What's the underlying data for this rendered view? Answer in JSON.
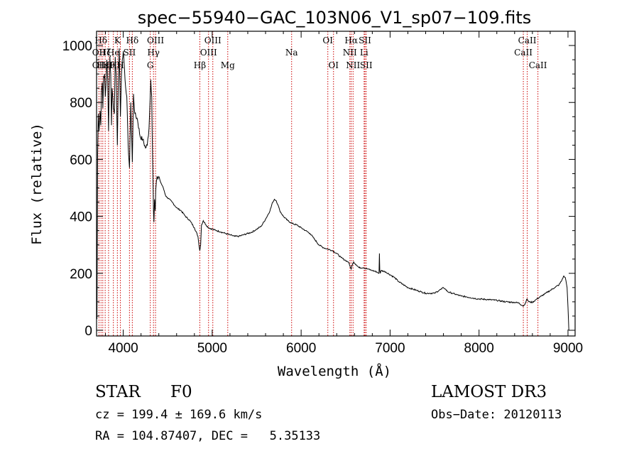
{
  "chart_data": {
    "type": "line",
    "title": "spec−55940−GAC_103N06_V1_sp07−109.fits",
    "xlabel": "Wavelength (Å)",
    "ylabel": "Flux (relative)",
    "xlim": [
      3700,
      9080
    ],
    "ylim": [
      -20,
      1050
    ],
    "xticks": [
      4000,
      5000,
      6000,
      7000,
      8000,
      9000
    ],
    "xtick_labels": [
      "4000",
      "5000",
      "6000",
      "7000",
      "8000",
      "9000"
    ],
    "yticks": [
      0,
      200,
      400,
      600,
      800,
      1000
    ],
    "ytick_labels": [
      "0",
      "200",
      "400",
      "600",
      "800",
      "1000"
    ],
    "grid": false,
    "series": [
      {
        "name": "flux",
        "x": [
          3700,
          3705,
          3712,
          3720,
          3728,
          3735,
          3740,
          3748,
          3755,
          3765,
          3770,
          3780,
          3790,
          3798,
          3805,
          3815,
          3825,
          3835,
          3842,
          3850,
          3860,
          3868,
          3875,
          3889,
          3900,
          3910,
          3920,
          3934,
          3945,
          3955,
          3968,
          3980,
          3990,
          4000,
          4010,
          4020,
          4040,
          4055,
          4070,
          4085,
          4102,
          4115,
          4130,
          4160,
          4190,
          4220,
          4250,
          4270,
          4290,
          4310,
          4320,
          4330,
          4340,
          4345,
          4352,
          4360,
          4365,
          4372,
          4380,
          4390,
          4400,
          4420,
          4450,
          4480,
          4500,
          4550,
          4600,
          4650,
          4700,
          4750,
          4800,
          4840,
          4855,
          4861,
          4870,
          4880,
          4900,
          4930,
          4960,
          5000,
          5050,
          5100,
          5150,
          5200,
          5250,
          5300,
          5350,
          5400,
          5450,
          5500,
          5550,
          5600,
          5650,
          5680,
          5700,
          5720,
          5740,
          5760,
          5800,
          5850,
          5900,
          5950,
          6000,
          6050,
          6100,
          6150,
          6200,
          6250,
          6300,
          6350,
          6400,
          6450,
          6500,
          6530,
          6550,
          6563,
          6575,
          6590,
          6620,
          6650,
          6700,
          6750,
          6800,
          6850,
          6875,
          6880,
          6884,
          6890,
          6900,
          6950,
          7000,
          7050,
          7100,
          7150,
          7200,
          7250,
          7300,
          7350,
          7400,
          7450,
          7500,
          7550,
          7580,
          7600,
          7620,
          7650,
          7700,
          7750,
          7800,
          7850,
          7900,
          7950,
          8000,
          8100,
          8200,
          8300,
          8400,
          8450,
          8480,
          8500,
          8520,
          8540,
          8560,
          8600,
          8650,
          8700,
          8750,
          8800,
          8850,
          8900,
          8930,
          8950,
          8970,
          8990,
          9000,
          9010
        ],
        "y": [
          280,
          40,
          620,
          760,
          700,
          740,
          770,
          720,
          840,
          870,
          780,
          890,
          900,
          820,
          860,
          950,
          880,
          700,
          860,
          960,
          900,
          720,
          850,
          780,
          760,
          960,
          900,
          650,
          880,
          990,
          750,
          900,
          950,
          980,
          940,
          880,
          820,
          650,
          570,
          800,
          590,
          830,
          760,
          740,
          680,
          670,
          640,
          650,
          710,
          880,
          820,
          600,
          420,
          380,
          460,
          420,
          490,
          520,
          540,
          530,
          540,
          520,
          500,
          470,
          465,
          450,
          430,
          420,
          400,
          385,
          360,
          330,
          290,
          280,
          300,
          370,
          385,
          370,
          360,
          355,
          350,
          345,
          340,
          335,
          330,
          330,
          335,
          340,
          345,
          355,
          365,
          390,
          420,
          450,
          460,
          455,
          440,
          420,
          400,
          385,
          375,
          370,
          360,
          350,
          340,
          320,
          300,
          290,
          285,
          280,
          270,
          255,
          245,
          240,
          225,
          215,
          230,
          240,
          230,
          220,
          220,
          215,
          210,
          205,
          200,
          270,
          210,
          200,
          210,
          205,
          195,
          185,
          170,
          160,
          150,
          145,
          140,
          135,
          130,
          130,
          130,
          140,
          145,
          150,
          145,
          135,
          130,
          125,
          120,
          118,
          115,
          112,
          110,
          108,
          105,
          100,
          98,
          96,
          88,
          85,
          95,
          110,
          100,
          98,
          110,
          120,
          130,
          140,
          150,
          160,
          175,
          190,
          185,
          150,
          80,
          0
        ]
      }
    ],
    "line_markers": [
      {
        "label": "Hδ",
        "x": 3750,
        "row": 1
      },
      {
        "label": "OII",
        "x": 3727,
        "row": 2
      },
      {
        "label": "OII",
        "x": 3727,
        "row": 3
      },
      {
        "label": "Hε",
        "x": 3770,
        "row": 3
      },
      {
        "label": "Hζ",
        "x": 3797,
        "row": 2
      },
      {
        "label": "Hθ",
        "x": 3835,
        "row": 3
      },
      {
        "label": "He",
        "x": 3889,
        "row": 2
      },
      {
        "label": "H",
        "x": 3889,
        "row": 3
      },
      {
        "label": "K",
        "x": 3934,
        "row": 1
      },
      {
        "label": "SII",
        "x": 4070,
        "row": 2
      },
      {
        "label": "H",
        "x": 3968,
        "row": 3
      },
      {
        "label": "Hδ",
        "x": 4102,
        "row": 1
      },
      {
        "label": "OIII",
        "x": 4363,
        "row": 1
      },
      {
        "label": "Hγ",
        "x": 4340,
        "row": 2
      },
      {
        "label": "G",
        "x": 4304,
        "row": 3
      },
      {
        "label": "Hβ",
        "x": 4861,
        "row": 3
      },
      {
        "label": "OIII",
        "x": 5007,
        "row": 1
      },
      {
        "label": "OIII",
        "x": 4959,
        "row": 2
      },
      {
        "label": "Mg",
        "x": 5175,
        "row": 3
      },
      {
        "label": "Na",
        "x": 5893,
        "row": 2
      },
      {
        "label": "OI",
        "x": 6300,
        "row": 1
      },
      {
        "label": "OI",
        "x": 6364,
        "row": 3
      },
      {
        "label": "Hα",
        "x": 6563,
        "row": 1
      },
      {
        "label": "SII",
        "x": 6717,
        "row": 1
      },
      {
        "label": "NII",
        "x": 6548,
        "row": 2
      },
      {
        "label": "Li",
        "x": 6708,
        "row": 2
      },
      {
        "label": "NII",
        "x": 6584,
        "row": 3
      },
      {
        "label": "SII",
        "x": 6731,
        "row": 3
      },
      {
        "label": "CaII",
        "x": 8542,
        "row": 1
      },
      {
        "label": "CaII",
        "x": 8498,
        "row": 2
      },
      {
        "label": "CaII",
        "x": 8662,
        "row": 3
      }
    ],
    "marker_color": "#cc0000"
  },
  "info": {
    "class_label": "STAR",
    "subclass": "F0",
    "survey": "LAMOST DR3",
    "cz": "cz = 199.4 ± 169.6 km/s",
    "obs_date": "Obs−Date: 20120113",
    "coords": "RA = 104.87407, DEC =   5.35133"
  }
}
